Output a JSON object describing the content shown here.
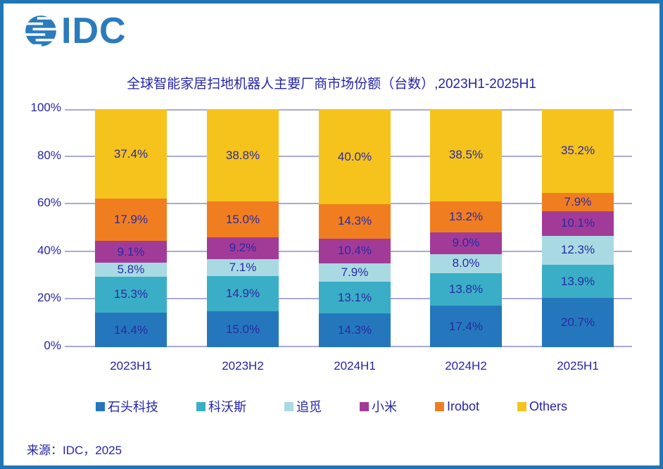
{
  "logo": {
    "text": "IDC",
    "brand_color": "#2B7BBD",
    "icon": "striped-globe-icon"
  },
  "title": "全球智能家居扫地机器人主要厂商市场份额（台数）,2023H1-2025H1",
  "source": "来源：IDC，2025",
  "colors": {
    "frame_border": "#2176B5",
    "text_navy": "#2525A9",
    "gridline": "#A9AAD6"
  },
  "chart_data": {
    "type": "bar",
    "stacked": true,
    "title": "全球智能家居扫地机器人主要厂商市场份额（台数）,2023H1-2025H1",
    "categories": [
      "2023H1",
      "2023H2",
      "2024H1",
      "2024H2",
      "2025H1"
    ],
    "series": [
      {
        "name": "石头科技",
        "color": "#2577BD",
        "values": [
          14.4,
          15.0,
          14.3,
          17.4,
          20.7
        ]
      },
      {
        "name": "科沃斯",
        "color": "#3AAEC6",
        "values": [
          15.3,
          14.9,
          13.1,
          13.8,
          13.9
        ]
      },
      {
        "name": "追觅",
        "color": "#A9DAE3",
        "values": [
          5.8,
          7.1,
          7.9,
          8.0,
          12.3
        ]
      },
      {
        "name": "小米",
        "color": "#A23B98",
        "values": [
          9.1,
          9.2,
          10.4,
          9.0,
          10.1
        ]
      },
      {
        "name": "Irobot",
        "color": "#F07E20",
        "values": [
          17.9,
          15.0,
          14.3,
          13.2,
          7.9
        ]
      },
      {
        "name": "Others",
        "color": "#F5C31B",
        "values": [
          37.4,
          38.8,
          40.0,
          38.5,
          35.2
        ]
      }
    ],
    "value_label_suffix": "%",
    "y_ticks": [
      0,
      20,
      40,
      60,
      80,
      100
    ],
    "y_tick_suffix": "%",
    "ylim": [
      0,
      100
    ],
    "grid": true,
    "legend_position": "bottom"
  }
}
